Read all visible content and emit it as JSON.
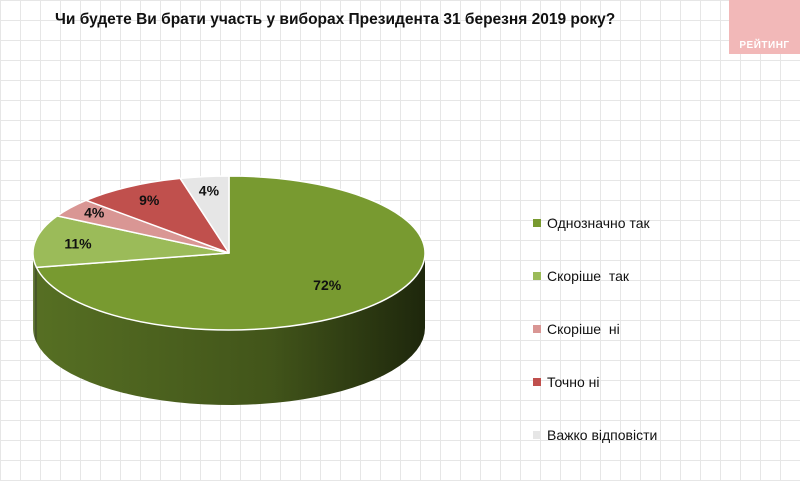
{
  "header": {
    "title": "Чи будете Ви брати участь у виборах Президента 31 березня 2019 року?",
    "logo_text": "РЕЙТИНГ"
  },
  "colors": {
    "slice_1": "#789a30",
    "slice_2": "#9bbb59",
    "slice_3": "#d99694",
    "slice_4": "#c0504d",
    "slice_5": "#e6e6e6",
    "logo_bg": "#f2b8b8"
  },
  "chart_data": {
    "type": "pie",
    "title": "Чи будете Ви брати участь у виборах Президента 31 березня 2019 року?",
    "categories": [
      "Однозначно так",
      "Скоріше  так",
      "Скоріше  ні",
      "Точно ні",
      "Важко відповісти"
    ],
    "values": [
      72,
      11,
      4,
      9,
      4
    ],
    "value_labels": [
      "72%",
      "11%",
      "4%",
      "9%",
      "4%"
    ],
    "unit": "%",
    "legend_position": "right",
    "style": "3d-pie"
  }
}
